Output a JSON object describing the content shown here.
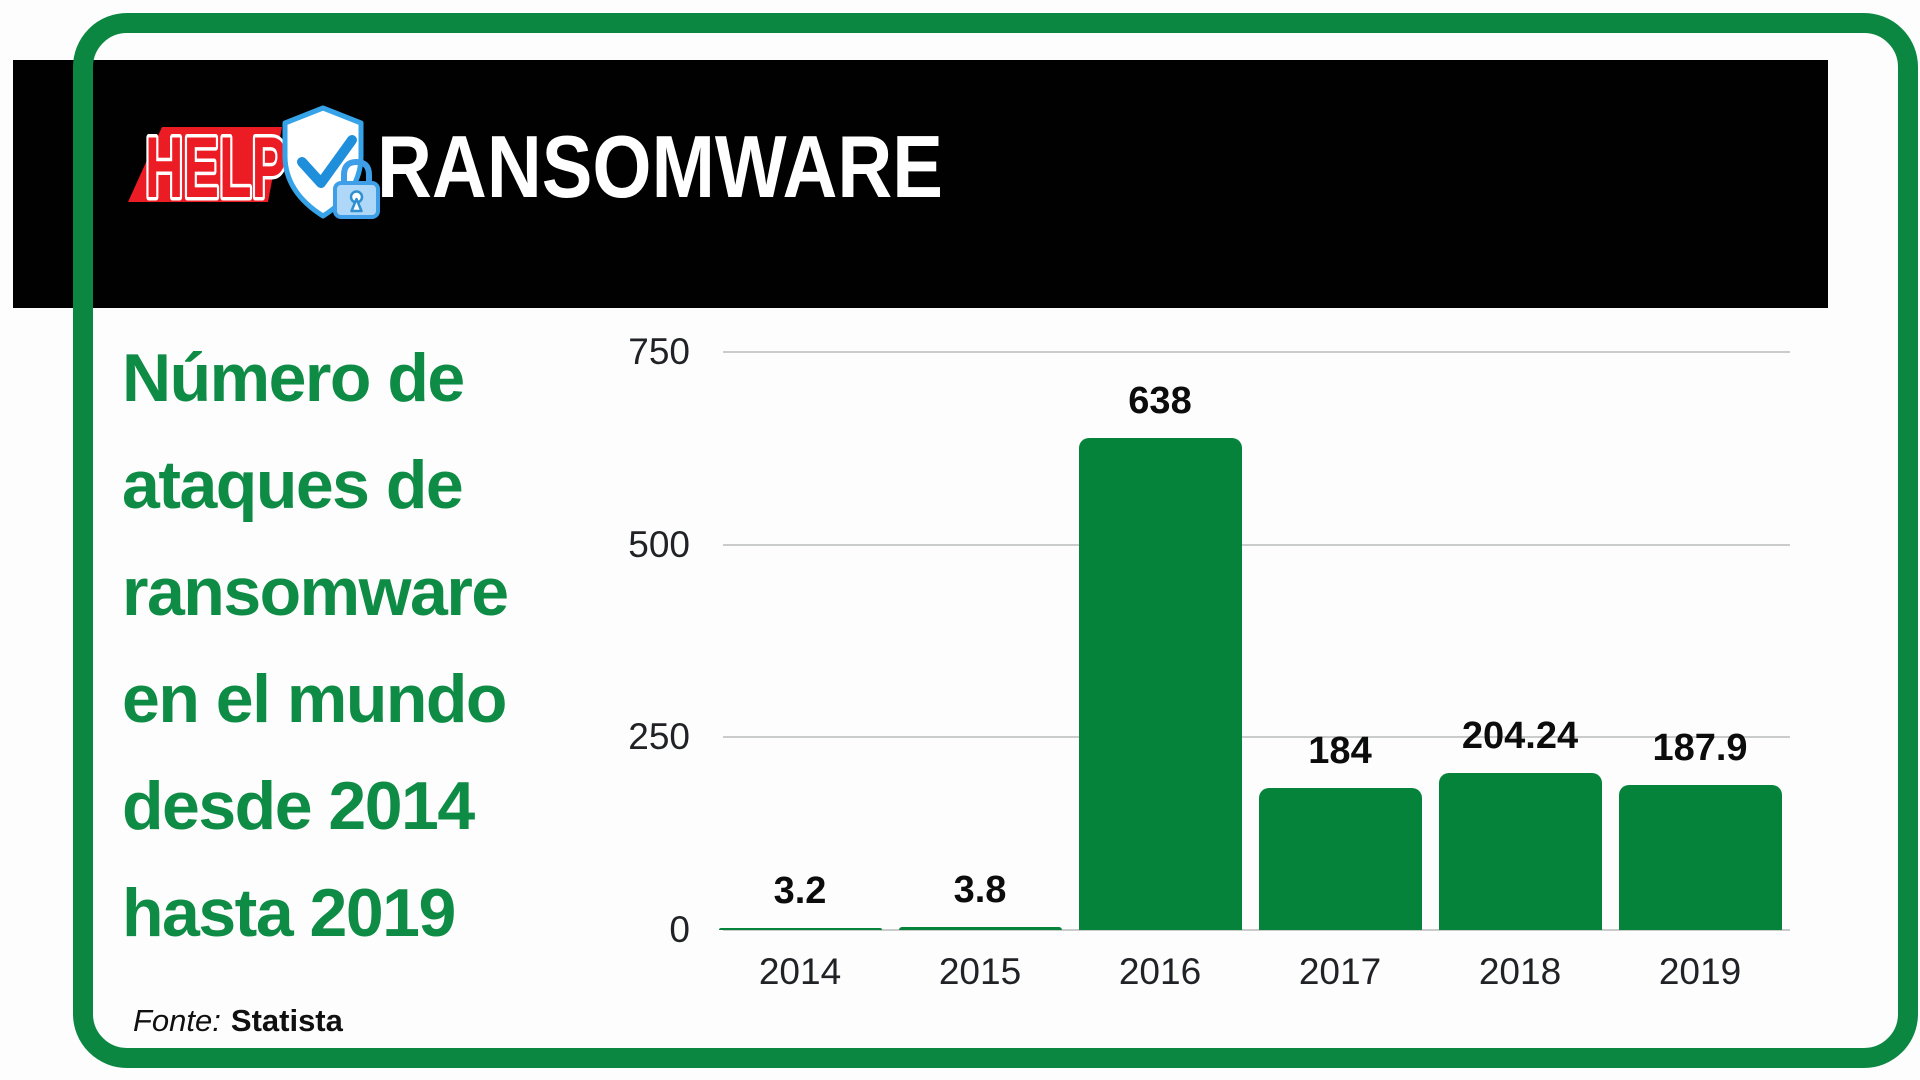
{
  "brand": {
    "help_wordmark": "HELP",
    "ransomware_wordmark": "RANSOMWARE",
    "red": "#EC1C24",
    "shield_blue": "#36A3E8",
    "check_blue": "#1F8FDC",
    "lock_fill": "#AFD8F8",
    "lock_stroke": "#3E9FE8",
    "banner_black": "#010101"
  },
  "title": {
    "lines": [
      "Número de",
      "ataques de",
      "ransomware",
      "en el mundo",
      "desde 2014",
      "hasta 2019"
    ],
    "color": "#0E8B44"
  },
  "source": {
    "prefix": "Fonte:",
    "name": "Statista"
  },
  "chart_data": {
    "type": "bar",
    "title": "Número de ataques de ransomware en el mundo desde 2014 hasta 2019",
    "categories": [
      "2014",
      "2015",
      "2016",
      "2017",
      "2018",
      "2019"
    ],
    "values": [
      3.2,
      3.8,
      638,
      184,
      204.24,
      187.9
    ],
    "xlabel": "",
    "ylabel": "",
    "ylim": [
      0,
      750
    ],
    "yticks": [
      0,
      250,
      500,
      750
    ],
    "grid": true,
    "legend_position": "none",
    "bar_color": "#06833B",
    "gridline_color": "#CACCCB"
  },
  "frame_color": "#0B8742"
}
